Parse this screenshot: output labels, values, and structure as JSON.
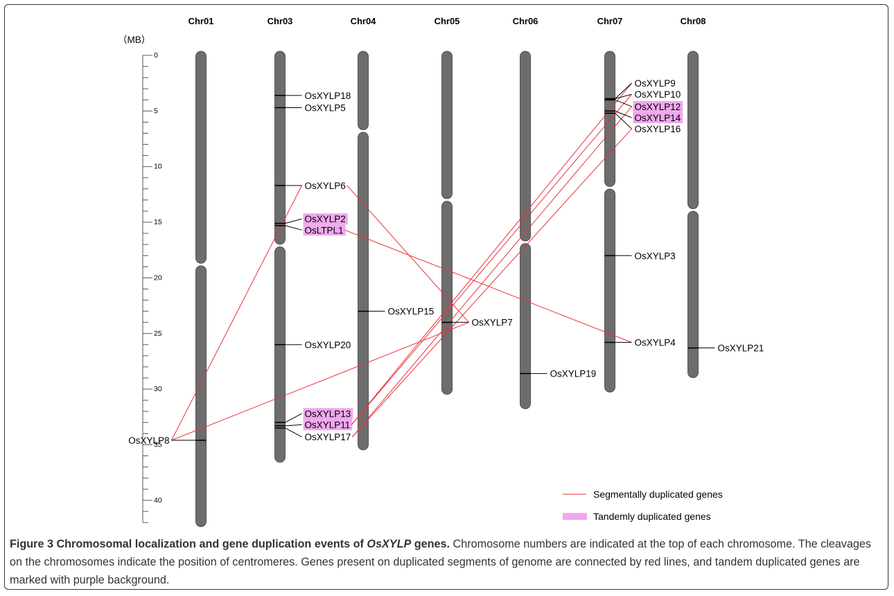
{
  "scale": {
    "unit_label": "（MB）",
    "ticks": [
      0,
      5,
      10,
      15,
      20,
      25,
      30,
      35,
      40
    ],
    "max": 42
  },
  "chromosomes": [
    {
      "name": "Chr01",
      "length": 42.0,
      "centromere": 18.8
    },
    {
      "name": "Chr03",
      "length": 36.2,
      "centromere": 17.1
    },
    {
      "name": "Chr04",
      "length": 35.1,
      "centromere": 6.8
    },
    {
      "name": "Chr05",
      "length": 30.1,
      "centromere": 13.0
    },
    {
      "name": "Chr06",
      "length": 31.4,
      "centromere": 16.8
    },
    {
      "name": "Chr07",
      "length": 29.9,
      "centromere": 11.9
    },
    {
      "name": "Chr08",
      "length": 28.6,
      "centromere": 13.9
    }
  ],
  "genes": [
    {
      "name": "OsXYLP18",
      "chr": "Chr03",
      "pos": 3.6,
      "label_pos": 3.6,
      "tandem": false
    },
    {
      "name": "OsXYLP5",
      "chr": "Chr03",
      "pos": 4.7,
      "label_pos": 4.7,
      "tandem": false
    },
    {
      "name": "OsXYLP6",
      "chr": "Chr03",
      "pos": 11.7,
      "label_pos": 11.7,
      "tandem": false
    },
    {
      "name": "OsXYLP2",
      "chr": "Chr03",
      "pos": 15.1,
      "label_pos": 14.7,
      "tandem": true
    },
    {
      "name": "OsLTPL1",
      "chr": "Chr03",
      "pos": 15.3,
      "label_pos": 15.7,
      "tandem": true
    },
    {
      "name": "OsXYLP20",
      "chr": "Chr03",
      "pos": 26.0,
      "label_pos": 26.0,
      "tandem": false
    },
    {
      "name": "OsXYLP13",
      "chr": "Chr03",
      "pos": 33.0,
      "label_pos": 32.2,
      "tandem": true
    },
    {
      "name": "OsXYLP11",
      "chr": "Chr03",
      "pos": 33.3,
      "label_pos": 33.2,
      "tandem": true
    },
    {
      "name": "OsXYLP17",
      "chr": "Chr03",
      "pos": 33.5,
      "label_pos": 34.3,
      "tandem": false
    },
    {
      "name": "OsXYLP8",
      "chr": "Chr01",
      "pos": 34.6,
      "label_pos": 34.6,
      "tandem": false,
      "side": "right"
    },
    {
      "name": "OsXYLP15",
      "chr": "Chr04",
      "pos": 23.0,
      "label_pos": 23.0,
      "tandem": false
    },
    {
      "name": "OsXYLP7",
      "chr": "Chr05",
      "pos": 24.0,
      "label_pos": 24.0,
      "tandem": false
    },
    {
      "name": "OsXYLP19",
      "chr": "Chr06",
      "pos": 28.6,
      "label_pos": 28.6,
      "tandem": false
    },
    {
      "name": "OsXYLP9",
      "chr": "Chr07",
      "pos": 3.9,
      "label_pos": 2.5,
      "tandem": false
    },
    {
      "name": "OsXYLP10",
      "chr": "Chr07",
      "pos": 3.9,
      "label_pos": 3.5,
      "tandem": false
    },
    {
      "name": "OsXYLP12",
      "chr": "Chr07",
      "pos": 4.0,
      "label_pos": 4.6,
      "tandem": true
    },
    {
      "name": "OsXYLP14",
      "chr": "Chr07",
      "pos": 5.0,
      "label_pos": 5.6,
      "tandem": true
    },
    {
      "name": "OsXYLP16",
      "chr": "Chr07",
      "pos": 5.2,
      "label_pos": 6.6,
      "tandem": false
    },
    {
      "name": "OsXYLP3",
      "chr": "Chr07",
      "pos": 18.0,
      "label_pos": 18.0,
      "tandem": false
    },
    {
      "name": "OsXYLP4",
      "chr": "Chr07",
      "pos": 25.8,
      "label_pos": 25.8,
      "tandem": false
    },
    {
      "name": "OsXYLP21",
      "chr": "Chr08",
      "pos": 26.3,
      "label_pos": 26.3,
      "tandem": false
    }
  ],
  "segmental_links": [
    [
      "OsXYLP8",
      "OsXYLP6"
    ],
    [
      "OsXYLP6",
      "OsXYLP7"
    ],
    [
      "OsLTPL1",
      "OsXYLP4"
    ],
    [
      "OsXYLP8",
      "OsXYLP7"
    ],
    [
      "OsXYLP11",
      "OsXYLP9"
    ],
    [
      "OsXYLP11",
      "OsXYLP10"
    ],
    [
      "OsXYLP17",
      "OsXYLP12"
    ],
    [
      "OsXYLP17",
      "OsXYLP16"
    ]
  ],
  "legend": {
    "segmental": "Segmentally duplicated genes",
    "tandem": "Tandemly duplicated genes"
  },
  "colors": {
    "chromosome": "#6d6d6d",
    "chromosome_edge": "#3a3a3a",
    "segmental_line": "#e8323a",
    "tandem_bg": "#f0a8ee",
    "tick": "#555555"
  },
  "caption": {
    "label": "Figure 3",
    "title_pre": "Chromosomal localization and gene duplication events of ",
    "title_gene": "OsXYLP",
    "title_post": " genes.",
    "body": "Chromosome numbers are indicated at the top of each chromosome. The cleavages on the chromosomes indicate the position of centromeres. Genes present on duplicated segments of genome are connected by red lines, and tandem duplicated genes are marked with purple background."
  }
}
